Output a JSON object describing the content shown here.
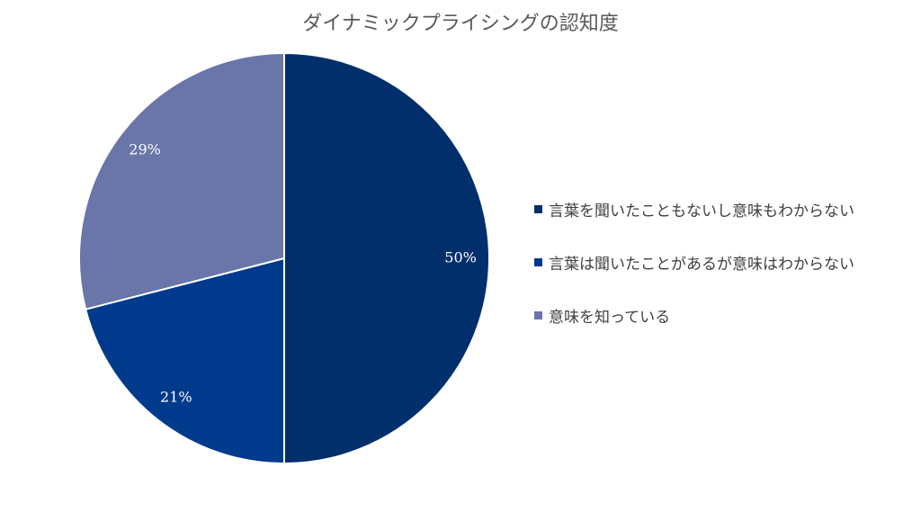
{
  "chart_data": {
    "type": "pie",
    "title": "ダイナミックプライシングの認知度",
    "categories": [
      "言葉を聞いたこともないし意味もわからない",
      "言葉は聞いたことがあるが意味はわからない",
      "意味を知っている"
    ],
    "values": [
      50,
      21,
      29
    ],
    "data_labels": [
      "50%",
      "21%",
      "29%"
    ],
    "colors": [
      "#002f6c",
      "#003a8c",
      "#6a75aa"
    ],
    "legend_position": "right"
  }
}
